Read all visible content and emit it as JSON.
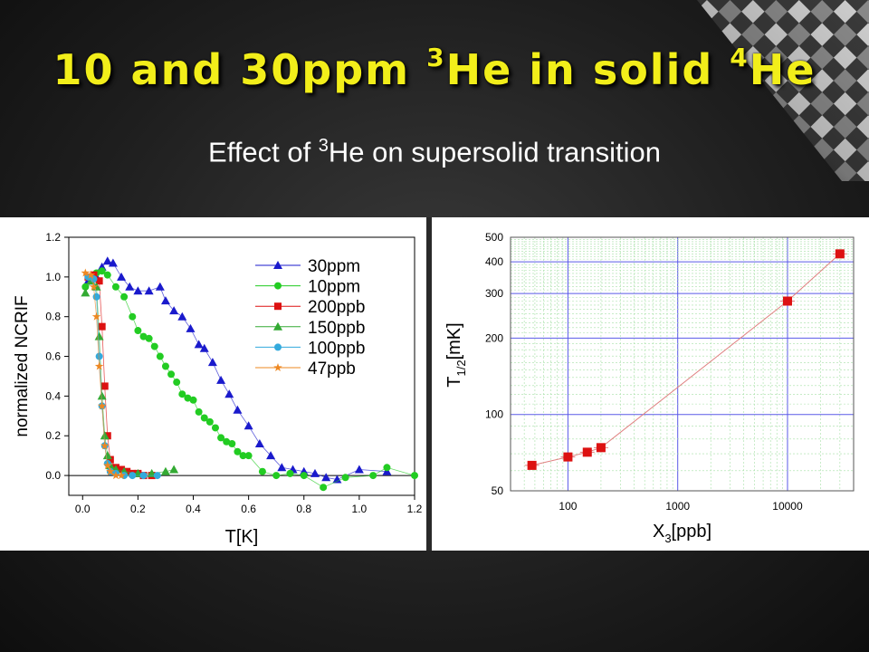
{
  "slide": {
    "title": {
      "main": "10 and 30ppm ",
      "sup1": "3",
      "mid": "He in solid ",
      "sup2": "4",
      "end": "He"
    },
    "subtitle": {
      "pre": "Effect of ",
      "sup": "3",
      "post": "He on supersolid transition"
    }
  },
  "chart_data": [
    {
      "type": "scatter",
      "xlabel": "T[K]",
      "ylabel": "normalized NCRIF",
      "xlim": [
        -0.05,
        1.2
      ],
      "ylim": [
        -0.1,
        1.2
      ],
      "xticks": [
        0.0,
        0.2,
        0.4,
        0.6,
        0.8,
        1.0,
        1.2
      ],
      "xtick_labels": [
        "0.0",
        "0.2",
        "0.4",
        "0.6",
        "0.8",
        "1.0",
        "1.2"
      ],
      "yticks": [
        0.0,
        0.2,
        0.4,
        0.6,
        0.8,
        1.0,
        1.2
      ],
      "ytick_labels": [
        "0.0",
        "0.2",
        "0.4",
        "0.6",
        "0.8",
        "1.0",
        "1.2"
      ],
      "reference_line_y": 0.0,
      "legend_position": "top-right",
      "series": [
        {
          "name": "30ppm",
          "color": "#1a1acc",
          "marker": "triangle",
          "x": [
            0.02,
            0.05,
            0.07,
            0.09,
            0.11,
            0.14,
            0.17,
            0.2,
            0.24,
            0.28,
            0.3,
            0.33,
            0.36,
            0.39,
            0.42,
            0.44,
            0.47,
            0.5,
            0.53,
            0.56,
            0.6,
            0.64,
            0.68,
            0.72,
            0.76,
            0.8,
            0.84,
            0.88,
            0.92,
            1.0,
            1.1
          ],
          "y": [
            0.98,
            1.0,
            1.05,
            1.08,
            1.07,
            1.0,
            0.95,
            0.93,
            0.93,
            0.95,
            0.88,
            0.83,
            0.8,
            0.74,
            0.66,
            0.64,
            0.57,
            0.48,
            0.41,
            0.33,
            0.25,
            0.16,
            0.1,
            0.04,
            0.03,
            0.02,
            0.01,
            -0.01,
            -0.02,
            0.03,
            0.02
          ]
        },
        {
          "name": "10ppm",
          "color": "#22cc22",
          "marker": "circle",
          "x": [
            0.01,
            0.03,
            0.05,
            0.07,
            0.09,
            0.12,
            0.15,
            0.18,
            0.2,
            0.22,
            0.24,
            0.26,
            0.28,
            0.3,
            0.32,
            0.34,
            0.36,
            0.38,
            0.4,
            0.42,
            0.44,
            0.46,
            0.48,
            0.5,
            0.52,
            0.54,
            0.56,
            0.58,
            0.6,
            0.65,
            0.7,
            0.75,
            0.8,
            0.87,
            0.95,
            1.05,
            1.1,
            1.2
          ],
          "y": [
            0.95,
            1.0,
            1.02,
            1.03,
            1.01,
            0.95,
            0.9,
            0.8,
            0.73,
            0.7,
            0.69,
            0.65,
            0.6,
            0.55,
            0.51,
            0.47,
            0.41,
            0.39,
            0.38,
            0.32,
            0.29,
            0.27,
            0.24,
            0.19,
            0.17,
            0.16,
            0.12,
            0.1,
            0.1,
            0.02,
            0.0,
            0.01,
            0.0,
            -0.06,
            -0.01,
            0.0,
            0.04,
            0.0
          ]
        },
        {
          "name": "200ppb",
          "color": "#dd1111",
          "marker": "square",
          "x": [
            0.02,
            0.04,
            0.06,
            0.07,
            0.08,
            0.09,
            0.1,
            0.12,
            0.14,
            0.16,
            0.18,
            0.2,
            0.22,
            0.25
          ],
          "y": [
            1.0,
            1.01,
            0.98,
            0.75,
            0.45,
            0.2,
            0.08,
            0.04,
            0.03,
            0.02,
            0.01,
            0.01,
            0.0,
            0.0
          ]
        },
        {
          "name": "150ppb",
          "color": "#33aa33",
          "marker": "triangle",
          "x": [
            0.01,
            0.03,
            0.05,
            0.06,
            0.07,
            0.08,
            0.09,
            0.1,
            0.12,
            0.15,
            0.2,
            0.25,
            0.3,
            0.33
          ],
          "y": [
            0.92,
            0.98,
            0.95,
            0.7,
            0.4,
            0.2,
            0.1,
            0.05,
            0.03,
            0.02,
            0.01,
            0.01,
            0.02,
            0.03
          ]
        },
        {
          "name": "100ppb",
          "color": "#33aadd",
          "marker": "circle",
          "x": [
            0.02,
            0.04,
            0.05,
            0.06,
            0.07,
            0.08,
            0.09,
            0.1,
            0.12,
            0.15,
            0.18,
            0.22,
            0.27
          ],
          "y": [
            1.0,
            0.99,
            0.9,
            0.6,
            0.35,
            0.15,
            0.06,
            0.02,
            0.01,
            0.0,
            0.0,
            0.0,
            0.0
          ]
        },
        {
          "name": "47ppb",
          "color": "#ee8822",
          "marker": "star",
          "x": [
            0.01,
            0.03,
            0.04,
            0.05,
            0.06,
            0.07,
            0.08,
            0.09,
            0.1,
            0.12,
            0.14
          ],
          "y": [
            1.02,
            1.01,
            0.95,
            0.8,
            0.55,
            0.35,
            0.15,
            0.05,
            0.02,
            0.0,
            0.0
          ]
        }
      ]
    },
    {
      "type": "line",
      "xlabel": {
        "main": "X",
        "sub": "3",
        "rest": "[ppb]"
      },
      "ylabel": {
        "main": "T",
        "sub": "1/2",
        "rest": "[mK]"
      },
      "xscale": "log",
      "yscale": "log",
      "xlim": [
        30,
        40000
      ],
      "ylim": [
        50,
        500
      ],
      "xticks": [
        100,
        1000,
        10000
      ],
      "xtick_labels": [
        "100",
        "1000",
        "10000"
      ],
      "yticks": [
        50,
        100,
        200,
        300,
        400,
        500
      ],
      "ytick_labels": [
        "50",
        "100",
        "200",
        "300",
        "400",
        "500"
      ],
      "grid": true,
      "series": [
        {
          "color": "#dd1111",
          "marker": "square",
          "x": [
            47,
            100,
            150,
            200,
            10000,
            30000
          ],
          "y": [
            63,
            68,
            71,
            74,
            280,
            430
          ]
        }
      ]
    }
  ]
}
